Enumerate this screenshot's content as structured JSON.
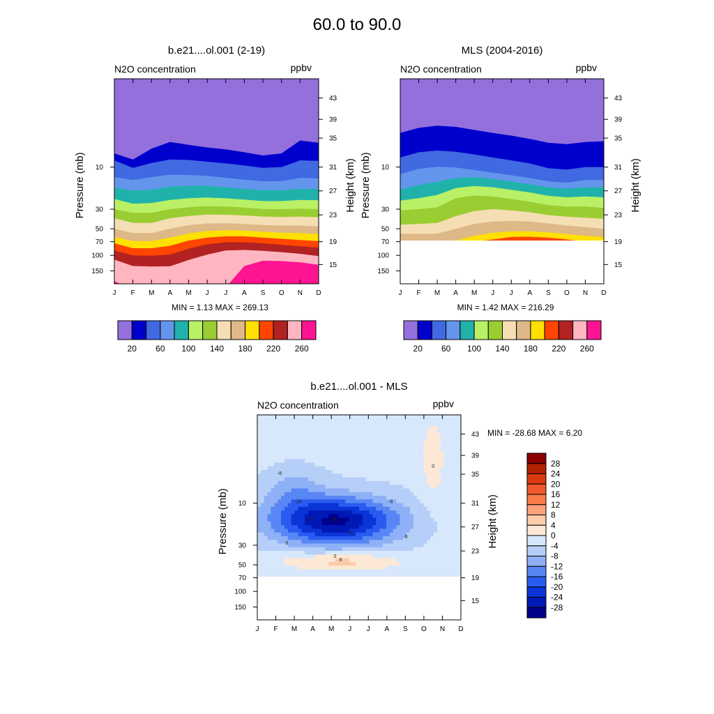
{
  "figure": {
    "title": "60.0 to  90.0"
  },
  "pressure_ticks": [
    {
      "label": "10",
      "p": 10
    },
    {
      "label": "30",
      "p": 30
    },
    {
      "label": "50",
      "p": 50
    },
    {
      "label": "70",
      "p": 70
    },
    {
      "label": "100",
      "p": 100
    },
    {
      "label": "150",
      "p": 150
    }
  ],
  "height_ticks": [
    {
      "label": "43",
      "p": 1.65
    },
    {
      "label": "39",
      "p": 2.88
    },
    {
      "label": "35",
      "p": 4.7
    },
    {
      "label": "31",
      "p": 10
    },
    {
      "label": "27",
      "p": 18.6
    },
    {
      "label": "23",
      "p": 34.8
    },
    {
      "label": "19",
      "p": 70
    },
    {
      "label": "15",
      "p": 127
    }
  ],
  "p_range": [
    1.0,
    210
  ],
  "chart_data": [
    {
      "type": "filled_contour",
      "title": "b.e21....ol.001 (2-19)",
      "left_label": "N2O concentration",
      "right_label": "ppbv",
      "xlabel": "",
      "ylabel": "Pressure (mb)",
      "ylabel_right": "Height (km)",
      "x_ticks": [
        "J",
        "F",
        "M",
        "A",
        "M",
        "J",
        "J",
        "A",
        "S",
        "O",
        "N",
        "D"
      ],
      "stats": "MIN =   1.13  MAX = 269.13",
      "data_floor_p": null,
      "levels": [
        20,
        40,
        60,
        80,
        100,
        120,
        140,
        160,
        180,
        200,
        220,
        240,
        260
      ],
      "colorbar_labels": [
        "20",
        "60",
        "100",
        "140",
        "180",
        "220",
        "260"
      ],
      "fill_colors": [
        "#9370DB",
        "#0000CD",
        "#4169E1",
        "#6495ED",
        "#20B2AA",
        "#B9F066",
        "#9ACD32",
        "#F5DEB3",
        "#DEB887",
        "#FFE000",
        "#FF4500",
        "#B22222",
        "#FFB6C1",
        "#FF1493"
      ],
      "boundary_pressures": [
        [
          7.0,
          8.2,
          6.2,
          5.2,
          5.6,
          6.0,
          6.3,
          6.8,
          7.4,
          7.0,
          5.0,
          5.3
        ],
        [
          8.4,
          10.2,
          9.0,
          8.2,
          8.3,
          8.7,
          9.1,
          9.6,
          10.2,
          10.0,
          8.4,
          8.5
        ],
        [
          13,
          14,
          13,
          12.2,
          12.3,
          12.6,
          13.2,
          13.9,
          14.5,
          14.4,
          13.3,
          13.4
        ],
        [
          17,
          18.4,
          18.0,
          16.6,
          16.3,
          16.3,
          16.9,
          17.6,
          18.3,
          18.3,
          17.6,
          17.7
        ],
        [
          23,
          26,
          25.5,
          23.6,
          22.5,
          22.1,
          22.6,
          23.4,
          24.3,
          24.3,
          23.6,
          23.8
        ],
        [
          30,
          33,
          33.0,
          30.0,
          28.5,
          27.7,
          28.0,
          28.8,
          29.9,
          30.0,
          29.6,
          30.0
        ],
        [
          38,
          43,
          43.0,
          38.0,
          35.8,
          34.5,
          34.6,
          35.3,
          36.4,
          36.8,
          36.4,
          37.0
        ],
        [
          50,
          56,
          56.0,
          50.0,
          45.5,
          43.5,
          43.2,
          44.0,
          45.4,
          46.0,
          46.0,
          47.0
        ],
        [
          62,
          69,
          69.0,
          63.0,
          56.5,
          53.0,
          52.0,
          52.5,
          54.0,
          55.5,
          56.0,
          57.5
        ],
        [
          73,
          83,
          83.0,
          78.0,
          68.0,
          63.0,
          61.0,
          61.0,
          63.0,
          65.0,
          67.0,
          69.0
        ],
        [
          88,
          100,
          101.0,
          98.0,
          84.0,
          75.0,
          71.0,
          71.0,
          73.0,
          76.0,
          79.0,
          82.0
        ],
        [
          112,
          132,
          134.0,
          133.0,
          113.0,
          98.0,
          88.0,
          87.0,
          89.0,
          92.0,
          96.0,
          102.0
        ],
        [
          195,
          250,
          250,
          250,
          250,
          250,
          230,
          132,
          115,
          116,
          120,
          128
        ]
      ]
    },
    {
      "type": "filled_contour",
      "title": "MLS (2004-2016)",
      "left_label": "N2O concentration",
      "right_label": "ppbv",
      "xlabel": "",
      "ylabel": "Pressure (mb)",
      "ylabel_right": "Height (km)",
      "x_ticks": [
        "J",
        "F",
        "M",
        "A",
        "M",
        "J",
        "J",
        "A",
        "S",
        "O",
        "N",
        "D"
      ],
      "stats": "MIN =   1.42  MAX = 216.29",
      "data_floor_p": 68,
      "levels": [
        20,
        40,
        60,
        80,
        100,
        120,
        140,
        160,
        180,
        200,
        220,
        240,
        260
      ],
      "colorbar_labels": [
        "20",
        "60",
        "100",
        "140",
        "180",
        "220",
        "260"
      ],
      "fill_colors": [
        "#9370DB",
        "#0000CD",
        "#4169E1",
        "#6495ED",
        "#20B2AA",
        "#B9F066",
        "#9ACD32",
        "#F5DEB3",
        "#DEB887",
        "#FFE000",
        "#FF4500",
        "#B22222",
        "#FFB6C1",
        "#FF1493"
      ],
      "boundary_pressures": [
        [
          4.1,
          3.6,
          3.4,
          3.5,
          3.8,
          4.1,
          4.4,
          4.8,
          5.3,
          5.5,
          5.2,
          5.1
        ],
        [
          7.8,
          6.8,
          6.5,
          6.7,
          7.2,
          7.8,
          8.4,
          9.1,
          10.3,
          10.7,
          10.0,
          10.0
        ],
        [
          12.0,
          10.5,
          9.9,
          10.1,
          10.8,
          11.6,
          12.4,
          13.3,
          14.5,
          15.0,
          14.0,
          14.0
        ],
        [
          18.0,
          16.0,
          14.7,
          13.3,
          13.0,
          13.6,
          14.6,
          15.7,
          17.0,
          17.5,
          17.0,
          17.0
        ],
        [
          24.0,
          22.5,
          20.7,
          17.3,
          16.4,
          16.9,
          18.1,
          19.4,
          21.2,
          22.0,
          21.5,
          22.0
        ],
        [
          31.0,
          30.0,
          28.5,
          22.5,
          21.0,
          21.5,
          23.0,
          24.7,
          27.0,
          28.0,
          28.0,
          29.0
        ],
        [
          45.0,
          44.0,
          43.0,
          36.0,
          31.5,
          30.0,
          31.0,
          32.5,
          35.0,
          36.5,
          37.5,
          38.5
        ],
        [
          57.0,
          57.0,
          57.0,
          50.0,
          44.0,
          41.5,
          40.7,
          41.5,
          43.5,
          46.0,
          48.0,
          50.0
        ],
        [
          70,
          70,
          70,
          68.0,
          60.0,
          55.5,
          53.5,
          53.5,
          55.0,
          57.5,
          60.0,
          62.0
        ],
        [
          70,
          70,
          70,
          70,
          70,
          66.0,
          62.0,
          61.5,
          63.0,
          66.0,
          70,
          70
        ],
        [
          70,
          70,
          70,
          70,
          70,
          70,
          70,
          70,
          70,
          70,
          70,
          70
        ],
        [
          70,
          70,
          70,
          70,
          70,
          70,
          70,
          70,
          70,
          70,
          70,
          70
        ],
        [
          70,
          70,
          70,
          70,
          70,
          70,
          70,
          70,
          70,
          70,
          70,
          70
        ]
      ]
    },
    {
      "type": "filled_contour",
      "title": "b.e21....ol.001 - MLS",
      "left_label": "N2O concentration",
      "right_label": "ppbv",
      "xlabel": "",
      "ylabel": "Pressure (mb)",
      "ylabel_right": "Height (km)",
      "x_ticks": [
        "J",
        "F",
        "M",
        "A",
        "M",
        "J",
        "J",
        "A",
        "S",
        "O",
        "N",
        "D"
      ],
      "stats": "MIN = -28.68  MAX =   6.20",
      "data_floor_p": 68,
      "colorbar_labels": [
        "28",
        "24",
        "20",
        "16",
        "12",
        "8",
        "4",
        "0",
        "-4",
        "-8",
        "-12",
        "-16",
        "-20",
        "-24",
        "-28"
      ],
      "colorbar_colors": [
        "#8B0000",
        "#B22000",
        "#DA3A10",
        "#F25A2E",
        "#FB7A4A",
        "#FCA27A",
        "#FDCBAA",
        "#FDE8D6",
        "#D8E8FC",
        "#B6CFF8",
        "#8EB0F6",
        "#5887F5",
        "#2A5BF0",
        "#0A34D6",
        "#0019B5",
        "#00008B"
      ],
      "field_spec": {
        "base": -3.0,
        "dips": [
          {
            "mon": 4.2,
            "logp": 1.2,
            "amp": -26,
            "sx": 3.4,
            "sy": 0.27
          },
          {
            "mon": 2.0,
            "logp": 0.85,
            "amp": -6,
            "sx": 1.6,
            "sy": 0.25
          }
        ],
        "bumps": [
          {
            "mon": 4.5,
            "logp": 1.66,
            "amp": 9,
            "sx": 3.3,
            "sy": 0.1
          },
          {
            "mon": 9.5,
            "logp": 0.5,
            "amp": 4.5,
            "sx": 0.8,
            "sy": 0.6
          }
        ]
      },
      "contour_labels": [
        "-8",
        "-16",
        "-24",
        "-20",
        "-16",
        "-8",
        "0",
        "0",
        "-8",
        "8",
        "0"
      ]
    }
  ]
}
